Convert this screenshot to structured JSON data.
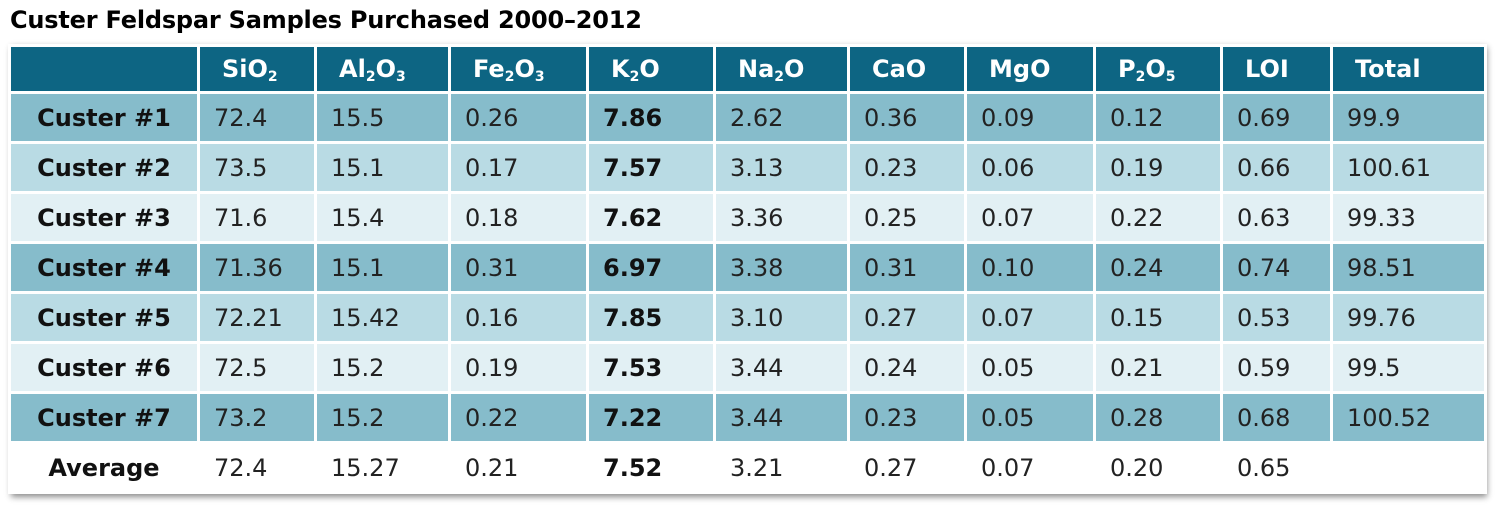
{
  "chart_data": {
    "type": "table",
    "title": "Custer Feldspar Samples Purchased 2000–2012",
    "columns": [
      {
        "main": "",
        "sub": "",
        "tail": ""
      },
      {
        "main": "SiO",
        "sub": "2",
        "tail": ""
      },
      {
        "main": "Al",
        "sub": "2",
        "tail": "O",
        "sub2": "3"
      },
      {
        "main": "Fe",
        "sub": "2",
        "tail": "O",
        "sub2": "3"
      },
      {
        "main": "K",
        "sub": "2",
        "tail": "O"
      },
      {
        "main": "Na",
        "sub": "2",
        "tail": "O"
      },
      {
        "main": "CaO"
      },
      {
        "main": "MgO"
      },
      {
        "main": "P",
        "sub": "2",
        "tail": "O",
        "sub2": "5"
      },
      {
        "main": "LOI"
      },
      {
        "main": "Total"
      }
    ],
    "rows": [
      {
        "label": "Custer #1",
        "values": [
          "72.4",
          "15.5",
          "0.26",
          "7.86",
          "2.62",
          "0.36",
          "0.09",
          "0.12",
          "0.69",
          "99.9"
        ]
      },
      {
        "label": "Custer #2",
        "values": [
          "73.5",
          "15.1",
          "0.17",
          "7.57",
          "3.13",
          "0.23",
          "0.06",
          "0.19",
          "0.66",
          "100.61"
        ]
      },
      {
        "label": "Custer #3",
        "values": [
          "71.6",
          "15.4",
          "0.18",
          "7.62",
          "3.36",
          "0.25",
          "0.07",
          "0.22",
          "0.63",
          "99.33"
        ]
      },
      {
        "label": "Custer #4",
        "values": [
          "71.36",
          "15.1",
          "0.31",
          "6.97",
          "3.38",
          "0.31",
          "0.10",
          "0.24",
          "0.74",
          "98.51"
        ]
      },
      {
        "label": "Custer #5",
        "values": [
          "72.21",
          "15.42",
          "0.16",
          "7.85",
          "3.10",
          "0.27",
          "0.07",
          "0.15",
          "0.53",
          "99.76"
        ]
      },
      {
        "label": "Custer #6",
        "values": [
          "72.5",
          "15.2",
          "0.19",
          "7.53",
          "3.44",
          "0.24",
          "0.05",
          "0.21",
          "0.59",
          "99.5"
        ]
      },
      {
        "label": "Custer #7",
        "values": [
          "73.2",
          "15.2",
          "0.22",
          "7.22",
          "3.44",
          "0.23",
          "0.05",
          "0.28",
          "0.68",
          "100.52"
        ]
      },
      {
        "label": "Average",
        "values": [
          "72.4",
          "15.27",
          "0.21",
          "7.52",
          "3.21",
          "0.27",
          "0.07",
          "0.20",
          "0.65",
          ""
        ]
      }
    ],
    "emphasized_column": "K2O",
    "row_shades": [
      "dark",
      "mid",
      "light",
      "dark",
      "mid",
      "light",
      "dark",
      "white"
    ],
    "colors": {
      "header_bg": "#0d6583",
      "row_dark": "#86bccb",
      "row_mid": "#b9dbe4",
      "row_light": "#e2f0f4",
      "row_average": "#ffffff"
    }
  }
}
